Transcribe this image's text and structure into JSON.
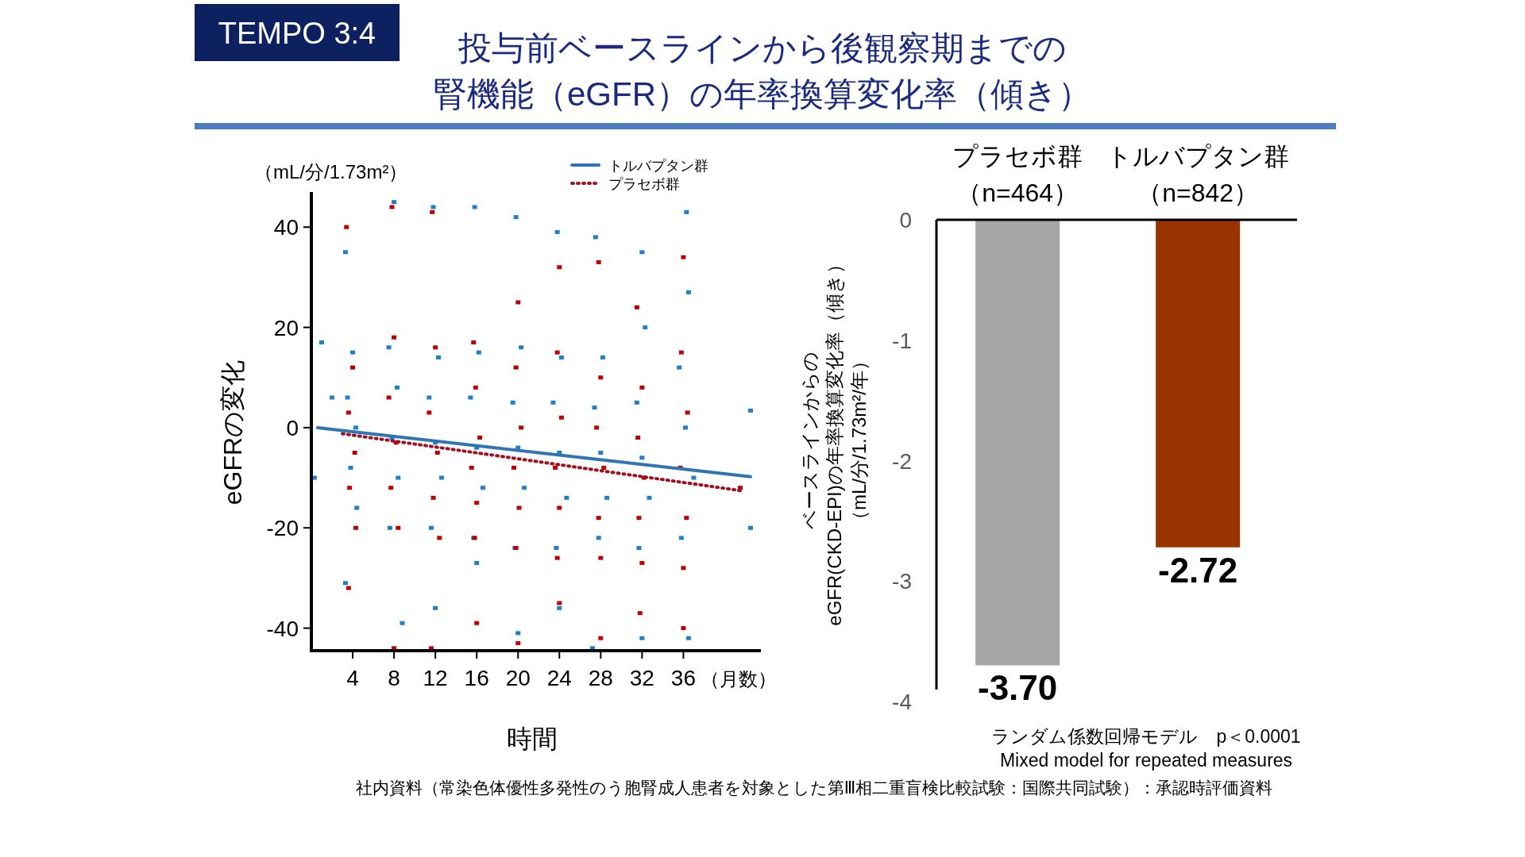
{
  "chart_data": [
    {
      "type": "scatter",
      "title": "投与前ベースラインから後観察期までの",
      "subtitle": "腎機能（eGFR）の年率換算変化率（傾き）",
      "xlabel": "時間",
      "ylabel": "eGFRの変化",
      "annotations": [
        "TEMPO 3:4",
        "（mL/分/1.73m²）",
        "（月数）",
        "社内資料（常染色体優性多発性のう胞腎成人患者を対象とした第Ⅲ相二重盲検比較試験：国際共同試験）：承認時評価資料"
      ],
      "xlim": [
        0,
        43.5
      ],
      "ylim": [
        -44.5,
        47
      ],
      "xticks": [
        4,
        8,
        12,
        16,
        20,
        24,
        28,
        32,
        36
      ],
      "yticks": [
        -40,
        -20,
        0,
        20,
        40
      ],
      "legend": "top right",
      "grid": false,
      "series": [
        {
          "type": "scatter",
          "marker": "square",
          "color": "#1f7fc8",
          "x": [
            1,
            0.3,
            2,
            3.3,
            4,
            3.5,
            4.3,
            3.8,
            4.4,
            3.3,
            8,
            7.5,
            8.3,
            7.8,
            8.4,
            7.6,
            8.8,
            11.8,
            12.3,
            11.4,
            12,
            12.6,
            11.6,
            12,
            15.8,
            16.2,
            15.4,
            16,
            16.6,
            15.7,
            16,
            19.8,
            20.3,
            19.5,
            20,
            20.6,
            19.7,
            20,
            23.8,
            24.2,
            23.4,
            24,
            24.7,
            23.7,
            24,
            27.5,
            28.2,
            27.4,
            28,
            28.6,
            27.8,
            27.2,
            32,
            32.3,
            31.5,
            32,
            32.7,
            31.7,
            32,
            36.3,
            36.5,
            35.6,
            36.2,
            37,
            35.8,
            36.5,
            42.5,
            42.5
          ],
          "values": [
            17,
            -10,
            6,
            35,
            15,
            6,
            0,
            -8,
            -16,
            -31,
            45,
            16,
            8,
            -2,
            -10,
            -20,
            -39,
            44,
            14,
            6,
            -3,
            -10,
            -20,
            -36,
            44,
            15,
            6,
            -4,
            -12,
            -22,
            -27,
            42,
            16,
            5,
            -4,
            -12,
            -24,
            -41,
            39,
            14,
            5,
            -5,
            -14,
            -24,
            -36,
            38,
            14,
            4,
            -5,
            -14,
            -22,
            -44,
            35,
            20,
            5,
            -6,
            -14,
            -24,
            -42,
            43,
            27,
            12,
            0,
            -10,
            -22,
            -42,
            3.4,
            -20
          ]
        },
        {
          "type": "scatter",
          "marker": "square",
          "color": "#c00000",
          "x": [
            3.4,
            4,
            3.6,
            4.2,
            3.7,
            4.3,
            3.6,
            7.8,
            8,
            7.5,
            8.2,
            7.7,
            8.4,
            8,
            11.7,
            12,
            11.4,
            12.2,
            11.8,
            12.4,
            11.6,
            15.7,
            15.9,
            16.3,
            15.5,
            16,
            15.8,
            16,
            20,
            19.8,
            20.3,
            19.6,
            20.1,
            19.8,
            20,
            24,
            23.8,
            24.2,
            23.6,
            24,
            23.8,
            24,
            27.8,
            28,
            27.6,
            28.3,
            27.8,
            28,
            28,
            31.5,
            32,
            31.6,
            32.2,
            31.7,
            32,
            31.8,
            36,
            35.8,
            36.4,
            35.7,
            36.3,
            36,
            36,
            41.5
          ],
          "values": [
            40,
            12,
            3,
            -5,
            -12,
            -20,
            -32,
            44,
            18,
            6,
            -3,
            -12,
            -20,
            -44,
            43,
            16,
            3,
            -5,
            -14,
            -22,
            -44,
            17,
            8,
            -2,
            -8,
            -15,
            -22,
            -39,
            25,
            12,
            0,
            -8,
            -16,
            -24,
            -43,
            32,
            15,
            2,
            -8,
            -16,
            -26,
            -35,
            33,
            10,
            0,
            -8,
            -18,
            -26,
            -42,
            24,
            8,
            -2,
            -10,
            -18,
            -27,
            -37,
            34,
            15,
            3,
            -8,
            -18,
            -28,
            -40,
            -12
          ]
        },
        {
          "type": "line",
          "name": "トルバプタン群",
          "color": "#2e75b6",
          "line_style": "solid",
          "x": [
            0.6,
            42.5
          ],
          "values": [
            0,
            -9.8
          ]
        },
        {
          "type": "line",
          "name": "プラセボ群",
          "color": "#a01020",
          "line_style": "dotted",
          "x": [
            3,
            41.6
          ],
          "values": [
            -1.2,
            -12.6
          ]
        }
      ]
    },
    {
      "type": "bar",
      "ylabel": "ベースラインからのeGFR(CKD-EPI)の年率換算変化率（傾き）",
      "categories": [
        "プラセボ群（n=464）",
        "トルバプタン群（n=842）"
      ],
      "values": [
        -3.7,
        -2.72
      ],
      "colors": [
        "#a6a6a6",
        "#993300"
      ],
      "value_labels": [
        "-3.70",
        "-2.72"
      ],
      "ylim": [
        -4,
        0
      ],
      "yticks": [
        -4,
        -3,
        -2,
        -1,
        0
      ],
      "annotations": [
        "ランダム係数回帰モデル　p＜0.0001",
        "Mixed model for repeated measures",
        "（mL/分/1.73m²/年）"
      ]
    }
  ]
}
